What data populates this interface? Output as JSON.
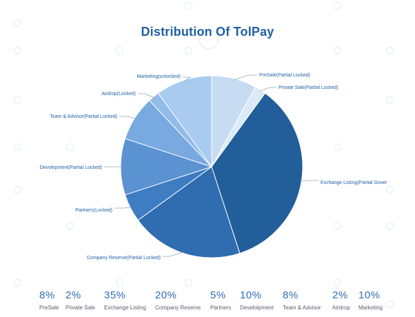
{
  "title": "Distribution Of TolPay",
  "chart_data": {
    "type": "pie",
    "title": "Distribution Of TolPay",
    "slices": [
      {
        "label": "PreSale(Partial Locked)",
        "value": 8,
        "color": "#c7dcf2"
      },
      {
        "label": "Private Sale(Partial Locked)",
        "value": 2,
        "color": "#dce9f7"
      },
      {
        "label": "Exchange Listing(Partial Gover",
        "value": 35,
        "color": "#225e9a"
      },
      {
        "label": "Company Reserve(Partial Locked)",
        "value": 20,
        "color": "#2f6cb0"
      },
      {
        "label": "Partners(Locked)",
        "value": 5,
        "color": "#3f7dc2"
      },
      {
        "label": "Devolepment(Partial Locked)",
        "value": 10,
        "color": "#5b92d1"
      },
      {
        "label": "Team & Advisor(Partial Locked)",
        "value": 8,
        "color": "#78a9e0"
      },
      {
        "label": "Airdrop(Locked)",
        "value": 2,
        "color": "#91bbe8"
      },
      {
        "label": "Marketing(unlocked)",
        "value": 10,
        "color": "#a9cbef"
      }
    ]
  },
  "stats": [
    {
      "pct": "8%",
      "name": "PreSale"
    },
    {
      "pct": "2%",
      "name": "Private Sale"
    },
    {
      "pct": "35%",
      "name": "Exchange Listing"
    },
    {
      "pct": "20%",
      "name": "Company Reserve"
    },
    {
      "pct": "5%",
      "name": "Partners"
    },
    {
      "pct": "10%",
      "name": "Develolpment"
    },
    {
      "pct": "8%",
      "name": "Team & Advisor"
    },
    {
      "pct": "2%",
      "name": "Airdrop"
    },
    {
      "pct": "10%",
      "name": "Marketing"
    }
  ]
}
